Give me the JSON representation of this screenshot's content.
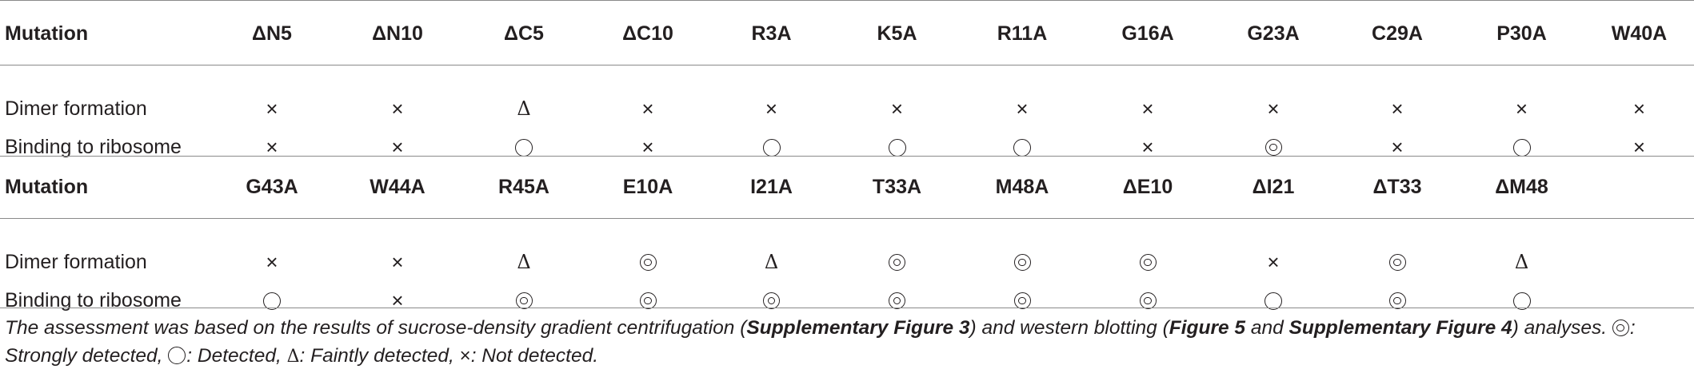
{
  "tables": [
    {
      "header_label": "Mutation",
      "columns": [
        "ΔN5",
        "ΔN10",
        "ΔC5",
        "ΔC10",
        "R3A",
        "K5A",
        "R11A",
        "G16A",
        "G23A",
        "C29A",
        "P30A",
        "W40A"
      ],
      "rows": [
        {
          "label": "Dimer formation",
          "values": [
            "×",
            "×",
            "Δ",
            "×",
            "×",
            "×",
            "×",
            "×",
            "×",
            "×",
            "×",
            "×"
          ]
        },
        {
          "label": "Binding to ribosome",
          "values": [
            "×",
            "×",
            "○",
            "×",
            "○",
            "○",
            "○",
            "×",
            "◎",
            "×",
            "○",
            "×"
          ]
        }
      ]
    },
    {
      "header_label": "Mutation",
      "columns": [
        "G43A",
        "W44A",
        "R45A",
        "E10A",
        "I21A",
        "T33A",
        "M48A",
        "ΔE10",
        "ΔI21",
        "ΔT33",
        "ΔM48",
        ""
      ],
      "rows": [
        {
          "label": "Dimer formation",
          "values": [
            "×",
            "×",
            "Δ",
            "◎",
            "Δ",
            "◎",
            "◎",
            "◎",
            "×",
            "◎",
            "Δ",
            ""
          ]
        },
        {
          "label": "Binding to ribosome",
          "values": [
            "○",
            "×",
            "◎",
            "◎",
            "◎",
            "◎",
            "◎",
            "◎",
            "○",
            "◎",
            "○",
            ""
          ]
        }
      ]
    }
  ],
  "footnote": {
    "text1": "The assessment was based on the results of sucrose-density gradient centrifugation (",
    "ref1": "Supplementary Figure 3",
    "text2": ") and western blotting (",
    "ref2": "Figure 5",
    "text3": " and ",
    "ref3": "Supplementary Figure 4",
    "text4": ") analyses. ",
    "legend_strong": ": Strongly detected, ",
    "legend_detected": ": Detected, ",
    "legend_faint": ": Faintly detected, ",
    "legend_not": ": Not detected."
  }
}
